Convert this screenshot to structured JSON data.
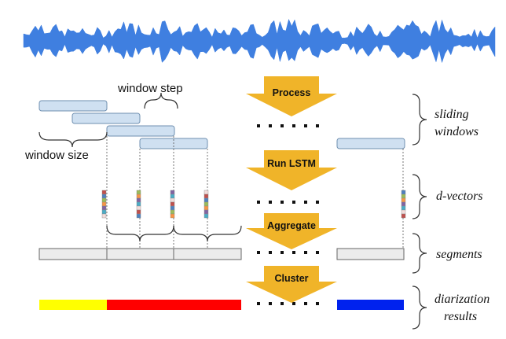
{
  "labels": {
    "window_step": "window step",
    "window_size": "window size"
  },
  "steps": [
    {
      "label": "Process"
    },
    {
      "label": "Run LSTM"
    },
    {
      "label": "Aggregate"
    },
    {
      "label": "Cluster"
    }
  ],
  "side_labels": {
    "sliding_windows": [
      "sliding",
      "windows"
    ],
    "d_vectors": "d-vectors",
    "segments": "segments",
    "diarization_results": [
      "diarization",
      "results"
    ]
  },
  "colors": {
    "waveform": "#3f7fe0",
    "window_fill": "#cfe0f1",
    "window_stroke": "#6f8fb0",
    "arrow": "#f0b429",
    "segment_fill": "#ececec",
    "speaker_1": "#ffff00",
    "speaker_2": "#ff0000",
    "speaker_3": "#0022ee",
    "dvector_cells": [
      "#c0504d",
      "#4f81bd",
      "#9bbb59",
      "#f79646",
      "#8064a2",
      "#4bacc6",
      "#f2dcdb"
    ]
  },
  "results": [
    {
      "speaker": "speaker_1"
    },
    {
      "speaker": "speaker_2"
    },
    {
      "speaker": "speaker_3"
    }
  ]
}
